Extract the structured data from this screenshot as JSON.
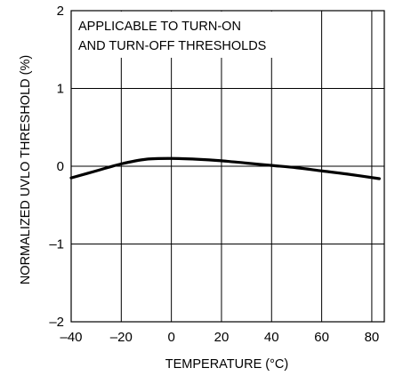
{
  "chart_data": {
    "type": "line",
    "title": "",
    "xlabel": "TEMPERATURE (°C)",
    "ylabel": "NORMALIZED UVLO THRESHOLD (%)",
    "xlim": [
      -40,
      85
    ],
    "ylim": [
      -2,
      2
    ],
    "x_ticks": [
      -40,
      -20,
      0,
      20,
      40,
      60,
      80
    ],
    "y_ticks": [
      -2,
      -1,
      0,
      1,
      2
    ],
    "x_tick_labels": [
      "–40",
      "–20",
      "0",
      "20",
      "40",
      "60",
      "80"
    ],
    "y_tick_labels": [
      "–2",
      "–1",
      "0",
      "1",
      "2"
    ],
    "grid": true,
    "annotation": [
      "APPLICABLE TO TURN-ON",
      "AND TURN-OFF THRESHOLDS"
    ],
    "series": [
      {
        "x": [
          -40,
          -30,
          -20,
          -10,
          0,
          10,
          20,
          30,
          40,
          50,
          60,
          70,
          83
        ],
        "y": [
          -0.15,
          -0.06,
          0.03,
          0.09,
          0.1,
          0.09,
          0.07,
          0.04,
          0.01,
          -0.02,
          -0.06,
          -0.1,
          -0.16
        ]
      }
    ]
  }
}
